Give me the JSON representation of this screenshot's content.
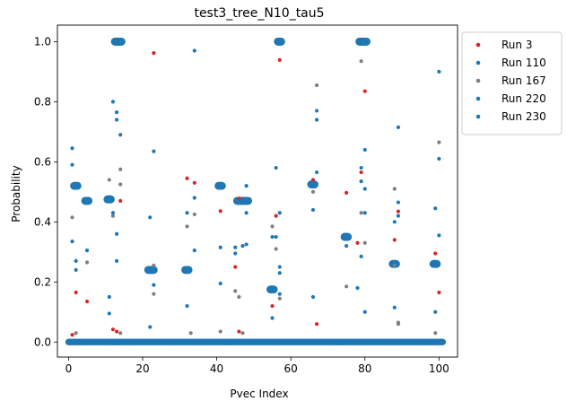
{
  "chart_data": {
    "type": "scatter",
    "title": "test3_tree_N10_tau5",
    "xlabel": "Pvec Index",
    "ylabel": "Probability",
    "xlim": [
      -3,
      105
    ],
    "ylim": [
      -0.05,
      1.055
    ],
    "xticks": [
      0,
      20,
      40,
      60,
      80,
      100
    ],
    "yticks": [
      0.0,
      0.2,
      0.4,
      0.6,
      0.8,
      1.0
    ],
    "xtick_labels": [
      "0",
      "20",
      "40",
      "60",
      "80",
      "100"
    ],
    "ytick_labels": [
      "0.0",
      "0.2",
      "0.4",
      "0.6",
      "0.8",
      "1.0"
    ],
    "grid": false,
    "legend_position": "outside-upper-right",
    "series": [
      {
        "name": "Run 3",
        "color": "#d62728",
        "points": [
          [
            1,
            0.024
          ],
          [
            2,
            0.165
          ],
          [
            5,
            0.135
          ],
          [
            12,
            0.042
          ],
          [
            13,
            0.035
          ],
          [
            14,
            0.47
          ],
          [
            23,
            0.962
          ],
          [
            32,
            0.545
          ],
          [
            34,
            0.53
          ],
          [
            41,
            0.436
          ],
          [
            45,
            0.25
          ],
          [
            46,
            0.035
          ],
          [
            46,
            0.478
          ],
          [
            55,
            0.12
          ],
          [
            56,
            0.42
          ],
          [
            57,
            0.939
          ],
          [
            66,
            0.54
          ],
          [
            67,
            0.06
          ],
          [
            75,
            0.497
          ],
          [
            78,
            0.33
          ],
          [
            79,
            0.565
          ],
          [
            80,
            0.835
          ],
          [
            88,
            0.34
          ],
          [
            89,
            0.435
          ],
          [
            99,
            0.295
          ],
          [
            100,
            0.165
          ]
        ]
      },
      {
        "name": "Run 110",
        "color": "#1f77b4",
        "points": [
          [
            1,
            0.645
          ],
          [
            1,
            0.59
          ],
          [
            1,
            0.335
          ],
          [
            2,
            0.27
          ],
          [
            2,
            0.24
          ],
          [
            5,
            0.305
          ],
          [
            11,
            0.15
          ],
          [
            11,
            0.095
          ],
          [
            12,
            0.8
          ],
          [
            13,
            0.765
          ],
          [
            13,
            0.74
          ],
          [
            14,
            0.69
          ],
          [
            12,
            0.43
          ],
          [
            13,
            0.36
          ],
          [
            13,
            0.27
          ],
          [
            22,
            0.415
          ],
          [
            23,
            0.635
          ],
          [
            23,
            0.19
          ],
          [
            22,
            0.05
          ],
          [
            32,
            0.43
          ],
          [
            32,
            0.12
          ],
          [
            34,
            0.97
          ],
          [
            34,
            0.48
          ],
          [
            34,
            0.305
          ],
          [
            41,
            0.315
          ],
          [
            41,
            0.195
          ],
          [
            45,
            0.315
          ],
          [
            45,
            0.295
          ],
          [
            47,
            0.32
          ],
          [
            48,
            0.52
          ],
          [
            48,
            0.43
          ],
          [
            48,
            0.325
          ],
          [
            55,
            0.35
          ],
          [
            55,
            0.08
          ],
          [
            56,
            0.58
          ],
          [
            56,
            0.35
          ],
          [
            57,
            0.43
          ],
          [
            57,
            0.25
          ],
          [
            57,
            0.23
          ],
          [
            57,
            0.16
          ],
          [
            66,
            0.44
          ],
          [
            66,
            0.15
          ],
          [
            67,
            0.77
          ],
          [
            67,
            0.74
          ],
          [
            67,
            0.565
          ],
          [
            75,
            0.32
          ],
          [
            78,
            0.18
          ],
          [
            79,
            0.58
          ],
          [
            79,
            0.535
          ],
          [
            79,
            0.285
          ],
          [
            80,
            0.64
          ],
          [
            80,
            0.51
          ],
          [
            80,
            0.43
          ],
          [
            80,
            0.1
          ],
          [
            88,
            0.4
          ],
          [
            88,
            0.115
          ],
          [
            89,
            0.715
          ],
          [
            89,
            0.465
          ],
          [
            89,
            0.42
          ],
          [
            99,
            0.445
          ],
          [
            99,
            0.1
          ],
          [
            100,
            0.9
          ],
          [
            100,
            0.61
          ],
          [
            100,
            0.355
          ]
        ]
      },
      {
        "name": "Run 167",
        "color": "#7f7f7f",
        "points": [
          [
            1,
            0.415
          ],
          [
            2,
            0.03
          ],
          [
            5,
            0.265
          ],
          [
            11,
            0.54
          ],
          [
            12,
            0.42
          ],
          [
            14,
            0.575
          ],
          [
            14,
            0.525
          ],
          [
            14,
            0.03
          ],
          [
            23,
            0.255
          ],
          [
            23,
            0.16
          ],
          [
            32,
            0.385
          ],
          [
            33,
            0.03
          ],
          [
            34,
            0.425
          ],
          [
            41,
            0.035
          ],
          [
            45,
            0.17
          ],
          [
            46,
            0.15
          ],
          [
            47,
            0.03
          ],
          [
            55,
            0.385
          ],
          [
            56,
            0.31
          ],
          [
            57,
            0.145
          ],
          [
            66,
            0.5
          ],
          [
            67,
            0.855
          ],
          [
            75,
            0.185
          ],
          [
            79,
            0.935
          ],
          [
            79,
            0.43
          ],
          [
            80,
            0.33
          ],
          [
            88,
            0.51
          ],
          [
            88,
            0.255
          ],
          [
            89,
            0.065
          ],
          [
            89,
            0.06
          ],
          [
            99,
            0.03
          ],
          [
            100,
            0.665
          ]
        ]
      },
      {
        "name": "Run 220",
        "color": "#1f77b4",
        "points": []
      },
      {
        "name": "Run 230",
        "color": "#1f77b4",
        "points": []
      }
    ],
    "clusters": [
      {
        "x_range": [
          1.5,
          2.5
        ],
        "y": 0.52
      },
      {
        "x_range": [
          4.5,
          5.5
        ],
        "y": 0.47
      },
      {
        "x_range": [
          10.5,
          11.5
        ],
        "y": 0.475
      },
      {
        "x_range": [
          12.5,
          14.3
        ],
        "y": 1.0
      },
      {
        "x_range": [
          21.5,
          23.0
        ],
        "y": 0.24
      },
      {
        "x_range": [
          31.5,
          32.5
        ],
        "y": 0.24
      },
      {
        "x_range": [
          40.5,
          41.5
        ],
        "y": 0.52
      },
      {
        "x_range": [
          45.5,
          48.5
        ],
        "y": 0.47
      },
      {
        "x_range": [
          54.5,
          55.5
        ],
        "y": 0.175
      },
      {
        "x_range": [
          56.5,
          57.5
        ],
        "y": 1.0
      },
      {
        "x_range": [
          65.5,
          66.5
        ],
        "y": 0.525
      },
      {
        "x_range": [
          74.5,
          75.5
        ],
        "y": 0.35
      },
      {
        "x_range": [
          78.5,
          80.5
        ],
        "y": 1.0
      },
      {
        "x_range": [
          87.5,
          88.5
        ],
        "y": 0.26
      },
      {
        "x_range": [
          98.5,
          99.5
        ],
        "y": 0.26
      }
    ],
    "zero_line_x_range": [
      0,
      101
    ]
  }
}
